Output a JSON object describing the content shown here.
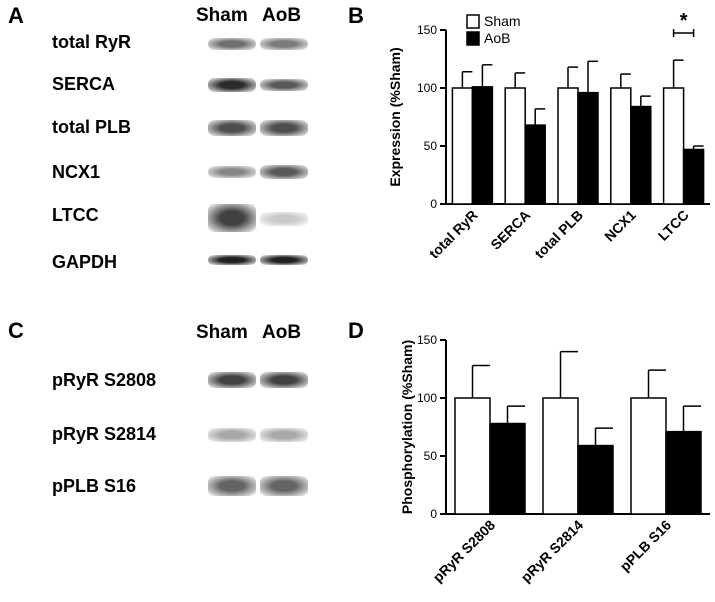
{
  "panels": {
    "A": {
      "letter": "A",
      "lane_headers": [
        "Sham",
        "AoB"
      ],
      "blots": [
        {
          "label": "total RyR",
          "sham_intensity": 0.55,
          "aob_intensity": 0.5
        },
        {
          "label": "SERCA",
          "sham_intensity": 0.85,
          "aob_intensity": 0.65
        },
        {
          "label": "total PLB",
          "sham_intensity": 0.7,
          "aob_intensity": 0.7
        },
        {
          "label": "NCX1",
          "sham_intensity": 0.45,
          "aob_intensity": 0.65
        },
        {
          "label": "LTCC",
          "sham_intensity": 0.75,
          "aob_intensity": 0.15
        },
        {
          "label": "GAPDH",
          "sham_intensity": 0.9,
          "aob_intensity": 0.9
        }
      ]
    },
    "C": {
      "letter": "C",
      "lane_headers": [
        "Sham",
        "AoB"
      ],
      "blots": [
        {
          "label": "pRyR S2808",
          "sham_intensity": 0.75,
          "aob_intensity": 0.75
        },
        {
          "label": "pRyR S2814",
          "sham_intensity": 0.3,
          "aob_intensity": 0.3
        },
        {
          "label": "pPLB S16",
          "sham_intensity": 0.6,
          "aob_intensity": 0.6
        }
      ]
    },
    "B": {
      "letter": "B"
    },
    "D": {
      "letter": "D"
    }
  },
  "chart_data": [
    {
      "panel": "B",
      "type": "bar",
      "categories": [
        "total RyR",
        "SERCA",
        "total PLB",
        "NCX1",
        "LTCC"
      ],
      "series": [
        {
          "name": "Sham",
          "values": [
            100,
            100,
            100,
            100,
            100
          ],
          "errors": [
            14,
            13,
            18,
            12,
            24
          ],
          "color": "#ffffff"
        },
        {
          "name": "AoB",
          "values": [
            101,
            68,
            96,
            84,
            47
          ],
          "errors": [
            19,
            14,
            27,
            9,
            3
          ],
          "color": "#000000"
        }
      ],
      "ylabel": "Expression (%Sham)",
      "xlabel": "",
      "ylim": [
        0,
        150
      ],
      "yticks": [
        0,
        50,
        100,
        150
      ],
      "legend": "top-left",
      "grid": false,
      "annotations": [
        {
          "category": "LTCC",
          "text": "*"
        }
      ]
    },
    {
      "panel": "D",
      "type": "bar",
      "categories": [
        "pRyR S2808",
        "pRyR S2814",
        "pPLB S16"
      ],
      "series": [
        {
          "name": "Sham",
          "values": [
            100,
            100,
            100
          ],
          "errors": [
            28,
            40,
            24
          ],
          "color": "#ffffff"
        },
        {
          "name": "AoB",
          "values": [
            78,
            59,
            71
          ],
          "errors": [
            15,
            15,
            22
          ],
          "color": "#000000"
        }
      ],
      "ylabel": "Phosphorylation (%Sham)",
      "xlabel": "",
      "ylim": [
        0,
        150
      ],
      "yticks": [
        0,
        50,
        100,
        150
      ],
      "grid": false
    }
  ]
}
